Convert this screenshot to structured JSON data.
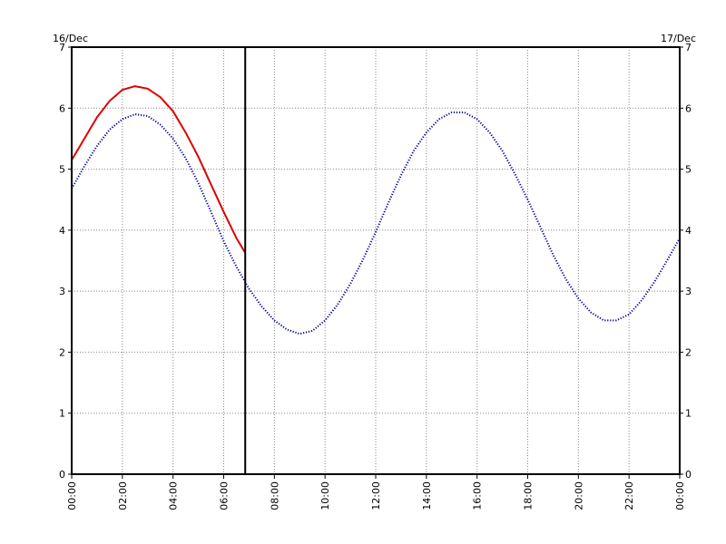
{
  "chart_data": {
    "type": "line",
    "title": "",
    "xlabel": "",
    "ylabel": "",
    "date_start_label": "16/Dec",
    "date_end_label": "17/Dec",
    "x_range_hours": [
      0,
      24
    ],
    "ylim": [
      0,
      7
    ],
    "y_ticks": [
      0,
      1,
      2,
      3,
      4,
      5,
      6,
      7
    ],
    "y_tick_labels": [
      "0",
      "1",
      "2",
      "3",
      "4",
      "5",
      "6",
      "7"
    ],
    "x_tick_labels": [
      "00:00",
      "02:00",
      "04:00",
      "06:00",
      "08:00",
      "10:00",
      "12:00",
      "14:00",
      "16:00",
      "18:00",
      "20:00",
      "22:00",
      "00:00"
    ],
    "grid": true,
    "grid_style": "dotted",
    "current_time_marker_hours": 6.85,
    "series": [
      {
        "color": "#dd0000",
        "style": "solid",
        "points": [
          [
            0.0,
            5.15
          ],
          [
            0.5,
            5.5
          ],
          [
            1.0,
            5.85
          ],
          [
            1.5,
            6.12
          ],
          [
            2.0,
            6.3
          ],
          [
            2.5,
            6.36
          ],
          [
            3.0,
            6.32
          ],
          [
            3.5,
            6.18
          ],
          [
            4.0,
            5.95
          ],
          [
            4.5,
            5.6
          ],
          [
            5.0,
            5.2
          ],
          [
            5.5,
            4.75
          ],
          [
            6.0,
            4.3
          ],
          [
            6.5,
            3.87
          ],
          [
            6.85,
            3.63
          ]
        ]
      },
      {
        "color": "#000099",
        "style": "dotted",
        "points": [
          [
            0.0,
            4.68
          ],
          [
            0.5,
            5.05
          ],
          [
            1.0,
            5.38
          ],
          [
            1.5,
            5.65
          ],
          [
            2.0,
            5.82
          ],
          [
            2.5,
            5.9
          ],
          [
            3.0,
            5.87
          ],
          [
            3.5,
            5.73
          ],
          [
            4.0,
            5.5
          ],
          [
            4.5,
            5.18
          ],
          [
            5.0,
            4.77
          ],
          [
            5.5,
            4.3
          ],
          [
            6.0,
            3.82
          ],
          [
            6.5,
            3.4
          ],
          [
            7.0,
            3.04
          ],
          [
            7.5,
            2.75
          ],
          [
            8.0,
            2.52
          ],
          [
            8.5,
            2.37
          ],
          [
            9.0,
            2.3
          ],
          [
            9.5,
            2.35
          ],
          [
            10.0,
            2.52
          ],
          [
            10.5,
            2.78
          ],
          [
            11.0,
            3.12
          ],
          [
            11.5,
            3.52
          ],
          [
            12.0,
            3.97
          ],
          [
            12.5,
            4.45
          ],
          [
            13.0,
            4.9
          ],
          [
            13.5,
            5.3
          ],
          [
            14.0,
            5.6
          ],
          [
            14.5,
            5.82
          ],
          [
            15.0,
            5.93
          ],
          [
            15.5,
            5.93
          ],
          [
            16.0,
            5.82
          ],
          [
            16.5,
            5.6
          ],
          [
            17.0,
            5.3
          ],
          [
            17.5,
            4.92
          ],
          [
            18.0,
            4.5
          ],
          [
            18.5,
            4.05
          ],
          [
            19.0,
            3.6
          ],
          [
            19.5,
            3.2
          ],
          [
            20.0,
            2.88
          ],
          [
            20.5,
            2.65
          ],
          [
            21.0,
            2.52
          ],
          [
            21.5,
            2.52
          ],
          [
            22.0,
            2.62
          ],
          [
            22.5,
            2.85
          ],
          [
            23.0,
            3.15
          ],
          [
            23.5,
            3.5
          ],
          [
            24.0,
            3.87
          ]
        ]
      }
    ]
  }
}
